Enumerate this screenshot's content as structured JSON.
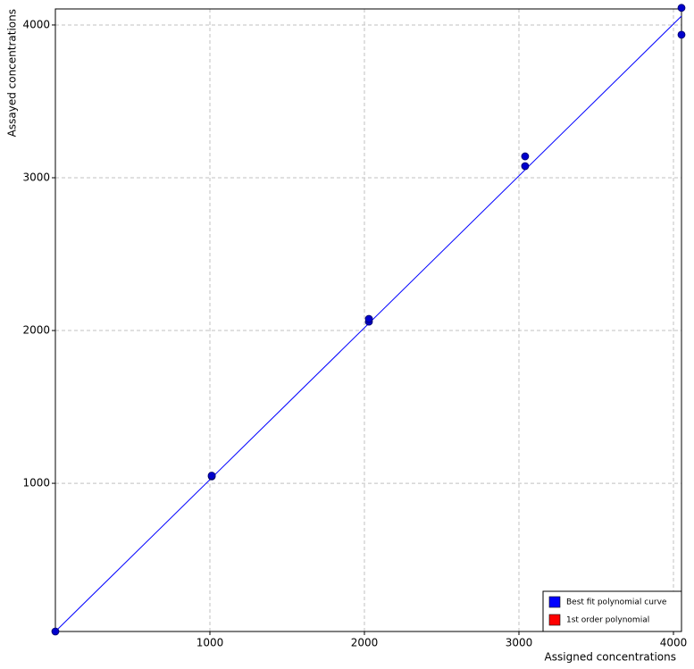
{
  "chart_data": {
    "type": "scatter",
    "x_label": "Assigned concentrations",
    "y_label": "Assayed concentrations",
    "xlim": [
      0,
      4052
    ],
    "ylim": [
      30,
      4105
    ],
    "xticks": [
      1000,
      2000,
      3000,
      4000
    ],
    "yticks": [
      1000,
      2000,
      3000,
      4000
    ],
    "grid": true,
    "points": {
      "color": "#0000cc",
      "x": [
        0,
        1012,
        1012,
        2029,
        2029,
        3040,
        3040,
        4052,
        4052
      ],
      "values": [
        30,
        1045,
        1050,
        2058,
        2076,
        3076,
        3140,
        4112,
        3936
      ]
    },
    "fit": {
      "color": "#0000ff",
      "x": [
        0,
        4052
      ],
      "values": [
        30,
        4058
      ]
    },
    "legend": [
      {
        "name": "Best fit polynomial curve",
        "color": "#0000ff"
      },
      {
        "name": "1st order polynomial",
        "color": "#ff0000"
      }
    ],
    "legend_position": "lower right"
  }
}
